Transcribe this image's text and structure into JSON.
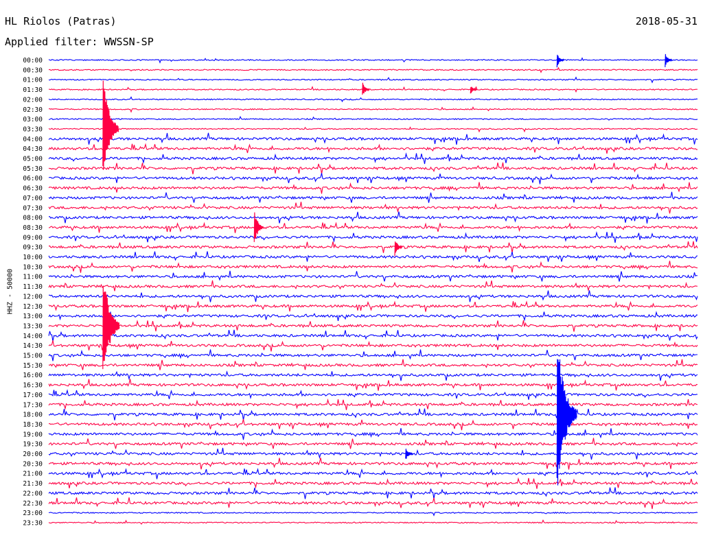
{
  "header": {
    "station": "HL Riolos (Patras)",
    "date": "2018-05-31",
    "filter": "Applied filter: WWSSN-SP"
  },
  "chart_data": {
    "type": "line",
    "title": "HL Riolos (Patras)",
    "date": "2018-05-31",
    "filter": "Applied filter: WWSSN-SP",
    "ylabel": "HHZ - 50000",
    "row_interval_minutes": 30,
    "row_labels": [
      "00:00",
      "00:30",
      "01:00",
      "01:30",
      "02:00",
      "02:30",
      "03:00",
      "03:30",
      "04:00",
      "04:30",
      "05:00",
      "05:30",
      "06:00",
      "06:30",
      "07:00",
      "07:30",
      "08:00",
      "08:30",
      "09:00",
      "09:30",
      "10:00",
      "10:30",
      "11:00",
      "11:30",
      "12:00",
      "12:30",
      "13:00",
      "13:30",
      "14:00",
      "14:30",
      "15:00",
      "15:30",
      "16:00",
      "16:30",
      "17:00",
      "17:30",
      "18:00",
      "18:30",
      "19:00",
      "19:30",
      "20:00",
      "20:30",
      "21:00",
      "21:30",
      "22:00",
      "22:30",
      "23:00",
      "23:30"
    ],
    "trace_colors": [
      "#0000ff",
      "#ff0044"
    ],
    "grid": false,
    "events": [
      {
        "row": "00:00",
        "minute": 23.5,
        "amplitude": 1.5
      },
      {
        "row": "00:00",
        "minute": 28.5,
        "amplitude": 1.5
      },
      {
        "row": "01:30",
        "minute": 14.5,
        "amplitude": 1.7
      },
      {
        "row": "01:30",
        "minute": 19.5,
        "amplitude": 1.0
      },
      {
        "row": "03:30",
        "minute": 2.5,
        "amplitude": 12.0
      },
      {
        "row": "08:30",
        "minute": 9.5,
        "amplitude": 4.0
      },
      {
        "row": "09:30",
        "minute": 16.0,
        "amplitude": 2.0
      },
      {
        "row": "13:30",
        "minute": 2.5,
        "amplitude": 13.0
      },
      {
        "row": "18:00",
        "minute": 23.5,
        "amplitude": 17.0
      },
      {
        "row": "20:00",
        "minute": 16.5,
        "amplitude": 1.5
      }
    ]
  }
}
